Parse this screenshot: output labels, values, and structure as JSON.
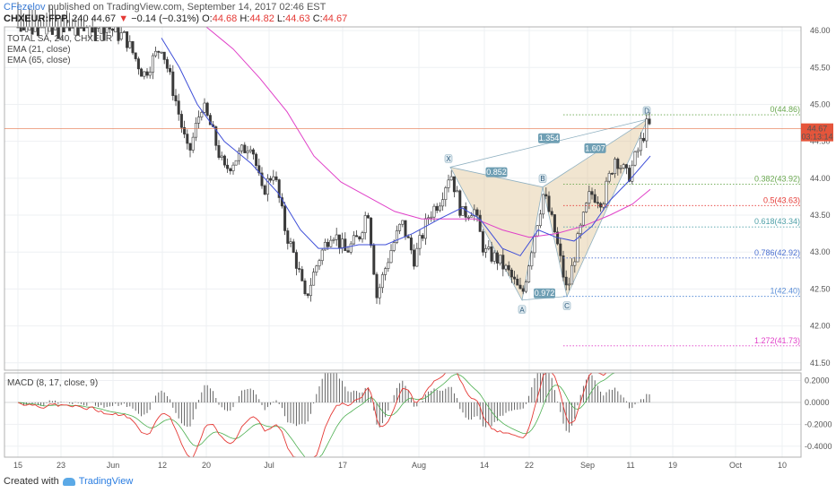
{
  "header": {
    "user": "CFezelov",
    "published_rest": " published on TradingView.com, September 14, 2017 02:46 EST",
    "symbol": "CHXEUR:FPP,",
    "interval": "240",
    "last": "44.67",
    "change_arrow": "▼",
    "change": "−0.14 (−0.31%)",
    "o_label": "O:",
    "open": "44.68",
    "h_label": "H:",
    "high": "44.82",
    "l_label": "L:",
    "low": "44.63",
    "c_label": "C:",
    "close": "44.67"
  },
  "legend": {
    "instrument": "TOTAL SA, 240, CHXEUR",
    "ema21": "EMA (21, close)",
    "ema65": "EMA (65, close)",
    "macd": "MACD (8, 17, close, 9)"
  },
  "price_axis": {
    "ticks": [
      "46.00",
      "45.50",
      "45.00",
      "44.50",
      "44.00",
      "43.50",
      "43.00",
      "42.50",
      "42.00",
      "41.50"
    ],
    "last_price_label": "44.67",
    "countdown": "03:13:14"
  },
  "macd_axis": {
    "ticks": [
      "0.2000",
      "0.0000",
      "-0.2000",
      "-0.4000"
    ]
  },
  "time_axis": {
    "ticks": [
      "15",
      "23",
      "Jun",
      "12",
      "20",
      "Jul",
      "17",
      "Aug",
      "14",
      "22",
      "Sep",
      "11",
      "19",
      "Oct",
      "10"
    ]
  },
  "pattern": {
    "points": {
      "X": "X",
      "A": "A",
      "B": "B",
      "C": "C",
      "D": "D"
    },
    "ratios": {
      "xb": "0.852",
      "ac": "0.972",
      "bd": "1.607",
      "xd": "1.354"
    }
  },
  "fib_levels": [
    {
      "label": "0(44.86)",
      "value": 44.86,
      "color": "#6aa84f"
    },
    {
      "label": "0.382(43.92)",
      "value": 43.92,
      "color": "#6aa84f"
    },
    {
      "label": "0.5(43.63)",
      "value": 43.63,
      "color": "#e53935"
    },
    {
      "label": "0.618(43.34)",
      "value": 43.34,
      "color": "#4fa0a8"
    },
    {
      "label": "0.786(42.92)",
      "value": 42.92,
      "color": "#4a6fd0"
    },
    {
      "label": "1(42.40)",
      "value": 42.4,
      "color": "#5b8fd8"
    },
    {
      "label": "1.272(41.73)",
      "value": 41.73,
      "color": "#e040c8"
    }
  ],
  "chart_data": {
    "type": "candlestick",
    "title": "TOTAL SA, 240, CHXEUR",
    "price_range": [
      41.4,
      46.05
    ],
    "macd_range": [
      -0.5,
      0.27
    ],
    "close_path": [
      {
        "x": 20,
        "y": 46.4
      },
      {
        "x": 60,
        "y": 46.3
      },
      {
        "x": 100,
        "y": 46.2
      },
      {
        "x": 140,
        "y": 45.9
      },
      {
        "x": 160,
        "y": 45.4
      },
      {
        "x": 180,
        "y": 45.8
      },
      {
        "x": 195,
        "y": 45.1
      },
      {
        "x": 210,
        "y": 44.3
      },
      {
        "x": 225,
        "y": 45.0
      },
      {
        "x": 235,
        "y": 44.7
      },
      {
        "x": 250,
        "y": 44.1
      },
      {
        "x": 265,
        "y": 44.3
      },
      {
        "x": 280,
        "y": 44.5
      },
      {
        "x": 292,
        "y": 43.8
      },
      {
        "x": 305,
        "y": 44.1
      },
      {
        "x": 318,
        "y": 43.3
      },
      {
        "x": 332,
        "y": 42.8
      },
      {
        "x": 340,
        "y": 42.35
      },
      {
        "x": 355,
        "y": 42.9
      },
      {
        "x": 370,
        "y": 43.3
      },
      {
        "x": 385,
        "y": 43.0
      },
      {
        "x": 400,
        "y": 43.2
      },
      {
        "x": 410,
        "y": 43.6
      },
      {
        "x": 420,
        "y": 42.4
      },
      {
        "x": 435,
        "y": 43.0
      },
      {
        "x": 448,
        "y": 43.4
      },
      {
        "x": 462,
        "y": 42.9
      },
      {
        "x": 478,
        "y": 43.5
      },
      {
        "x": 490,
        "y": 43.7
      },
      {
        "x": 502,
        "y": 44.1
      },
      {
        "x": 515,
        "y": 43.5
      },
      {
        "x": 528,
        "y": 43.6
      },
      {
        "x": 540,
        "y": 43.0
      },
      {
        "x": 555,
        "y": 42.9
      },
      {
        "x": 568,
        "y": 42.7
      },
      {
        "x": 582,
        "y": 42.4
      },
      {
        "x": 595,
        "y": 43.2
      },
      {
        "x": 606,
        "y": 43.8
      },
      {
        "x": 618,
        "y": 43.3
      },
      {
        "x": 632,
        "y": 42.45
      },
      {
        "x": 645,
        "y": 43.2
      },
      {
        "x": 658,
        "y": 43.8
      },
      {
        "x": 672,
        "y": 43.7
      },
      {
        "x": 686,
        "y": 44.3
      },
      {
        "x": 700,
        "y": 44.0
      },
      {
        "x": 712,
        "y": 44.4
      },
      {
        "x": 722,
        "y": 44.75
      },
      {
        "x": 725,
        "y": 44.67
      }
    ],
    "ema21_path": [
      {
        "x": 180,
        "y": 45.9
      },
      {
        "x": 200,
        "y": 45.5
      },
      {
        "x": 220,
        "y": 45.0
      },
      {
        "x": 250,
        "y": 44.5
      },
      {
        "x": 280,
        "y": 44.2
      },
      {
        "x": 310,
        "y": 43.8
      },
      {
        "x": 335,
        "y": 43.3
      },
      {
        "x": 355,
        "y": 43.05
      },
      {
        "x": 380,
        "y": 43.05
      },
      {
        "x": 400,
        "y": 43.1
      },
      {
        "x": 430,
        "y": 43.1
      },
      {
        "x": 460,
        "y": 43.25
      },
      {
        "x": 490,
        "y": 43.45
      },
      {
        "x": 515,
        "y": 43.6
      },
      {
        "x": 535,
        "y": 43.45
      },
      {
        "x": 560,
        "y": 43.05
      },
      {
        "x": 580,
        "y": 42.95
      },
      {
        "x": 600,
        "y": 43.3
      },
      {
        "x": 620,
        "y": 43.2
      },
      {
        "x": 640,
        "y": 43.15
      },
      {
        "x": 660,
        "y": 43.35
      },
      {
        "x": 680,
        "y": 43.7
      },
      {
        "x": 700,
        "y": 43.95
      },
      {
        "x": 725,
        "y": 44.3
      }
    ],
    "ema65_path": [
      {
        "x": 230,
        "y": 46.05
      },
      {
        "x": 260,
        "y": 45.75
      },
      {
        "x": 290,
        "y": 45.35
      },
      {
        "x": 320,
        "y": 44.9
      },
      {
        "x": 350,
        "y": 44.3
      },
      {
        "x": 380,
        "y": 43.95
      },
      {
        "x": 410,
        "y": 43.75
      },
      {
        "x": 440,
        "y": 43.55
      },
      {
        "x": 470,
        "y": 43.45
      },
      {
        "x": 500,
        "y": 43.45
      },
      {
        "x": 530,
        "y": 43.45
      },
      {
        "x": 560,
        "y": 43.3
      },
      {
        "x": 590,
        "y": 43.2
      },
      {
        "x": 620,
        "y": 43.25
      },
      {
        "x": 650,
        "y": 43.35
      },
      {
        "x": 680,
        "y": 43.5
      },
      {
        "x": 705,
        "y": 43.65
      },
      {
        "x": 725,
        "y": 43.85
      }
    ],
    "harmonic_points": [
      {
        "label": "X",
        "x": 502,
        "y": 44.15
      },
      {
        "label": "A",
        "x": 582,
        "y": 42.35
      },
      {
        "label": "B",
        "x": 605,
        "y": 43.88
      },
      {
        "label": "C",
        "x": 632,
        "y": 42.4
      },
      {
        "label": "D",
        "x": 722,
        "y": 44.8
      }
    ]
  }
}
